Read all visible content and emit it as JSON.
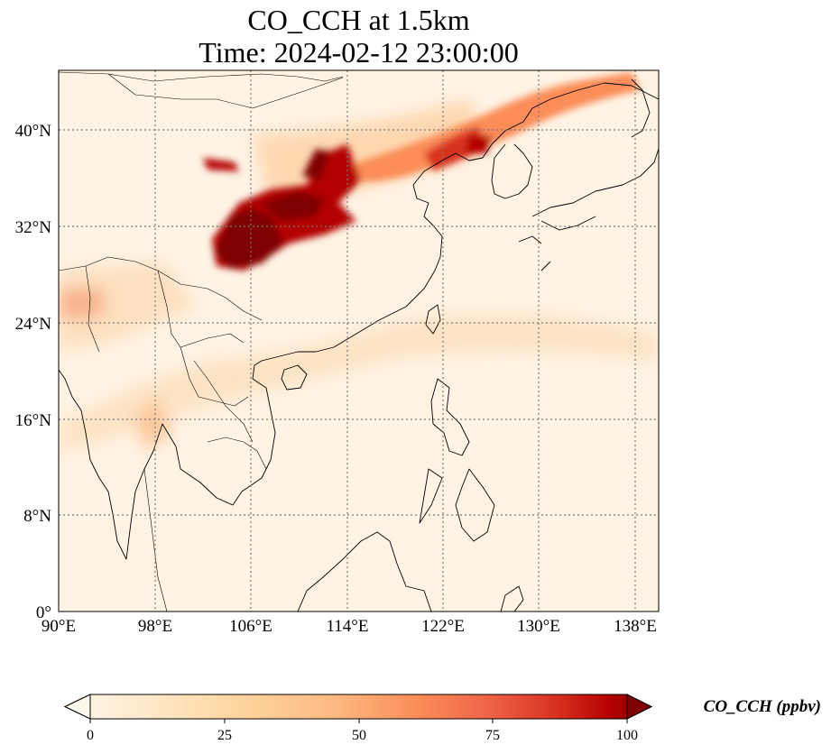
{
  "title": {
    "line1": "CO_CCH at 1.5km",
    "line2": "Time: 2024-02-12 23:00:00"
  },
  "map": {
    "lon_range": [
      90,
      140
    ],
    "lat_range": [
      0,
      45
    ],
    "x_ticks": [
      "90°E",
      "98°E",
      "106°E",
      "114°E",
      "122°E",
      "130°E",
      "138°E"
    ],
    "y_ticks": [
      "0°",
      "8°N",
      "16°N",
      "24°N",
      "32°N",
      "40°N"
    ],
    "gridlines": "dotted",
    "colormap": "OrRd",
    "colors": {
      "low": "#fff7ec",
      "mid": "#fc8d59",
      "high": "#7f0000",
      "coastline": "#000000",
      "grid": "#7a7a7a"
    }
  },
  "colorbar": {
    "ticks": [
      "0",
      "25",
      "50",
      "75",
      "100"
    ],
    "label": "CO_CCH (ppbv)",
    "range": [
      0,
      100
    ],
    "extend": "both"
  }
}
